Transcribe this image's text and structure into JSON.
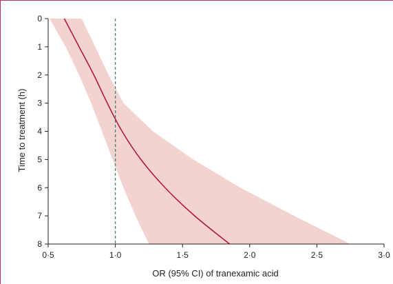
{
  "chart_data": {
    "type": "line",
    "xlabel": "OR (95% CI) of tranexamic acid",
    "ylabel": "Time to treatment (h)",
    "x_ticks": [
      "0·5",
      "1·0",
      "1·5",
      "2·0",
      "2·5",
      "3·0"
    ],
    "x_tick_values": [
      0.5,
      1.0,
      1.5,
      2.0,
      2.5,
      3.0
    ],
    "y_ticks": [
      "0",
      "1",
      "2",
      "3",
      "4",
      "5",
      "6",
      "7",
      "8"
    ],
    "y_tick_values": [
      0,
      1,
      2,
      3,
      4,
      5,
      6,
      7,
      8
    ],
    "xlim": [
      0.5,
      3.0
    ],
    "ylim": [
      0,
      8
    ],
    "y_reversed": true,
    "reference_line": {
      "x": 1.0,
      "style": "dashed",
      "color": "#2e7d6e"
    },
    "series": [
      {
        "role": "estimate",
        "color": "#b0193f",
        "points": [
          {
            "t": 0,
            "or": 0.62
          },
          {
            "t": 1,
            "or": 0.73
          },
          {
            "t": 2,
            "or": 0.84
          },
          {
            "t": 3,
            "or": 0.94
          },
          {
            "t": 4,
            "or": 1.05
          },
          {
            "t": 5,
            "or": 1.19
          },
          {
            "t": 6,
            "or": 1.37
          },
          {
            "t": 7,
            "or": 1.59
          },
          {
            "t": 8,
            "or": 1.85
          }
        ]
      }
    ],
    "ci_band": {
      "color": "#f3d3cf",
      "lower": [
        {
          "t": 0,
          "or": 0.51
        },
        {
          "t": 1,
          "or": 0.63
        },
        {
          "t": 2,
          "or": 0.73
        },
        {
          "t": 3,
          "or": 0.82
        },
        {
          "t": 4,
          "or": 0.9
        },
        {
          "t": 5,
          "or": 0.98
        },
        {
          "t": 6,
          "or": 1.06
        },
        {
          "t": 7,
          "or": 1.15
        },
        {
          "t": 8,
          "or": 1.25
        }
      ],
      "upper": [
        {
          "t": 0,
          "or": 0.75
        },
        {
          "t": 1,
          "or": 0.85
        },
        {
          "t": 2,
          "or": 0.95
        },
        {
          "t": 3,
          "or": 1.06
        },
        {
          "t": 4,
          "or": 1.28
        },
        {
          "t": 5,
          "or": 1.58
        },
        {
          "t": 6,
          "or": 1.93
        },
        {
          "t": 7,
          "or": 2.33
        },
        {
          "t": 8,
          "or": 2.75
        }
      ]
    }
  }
}
